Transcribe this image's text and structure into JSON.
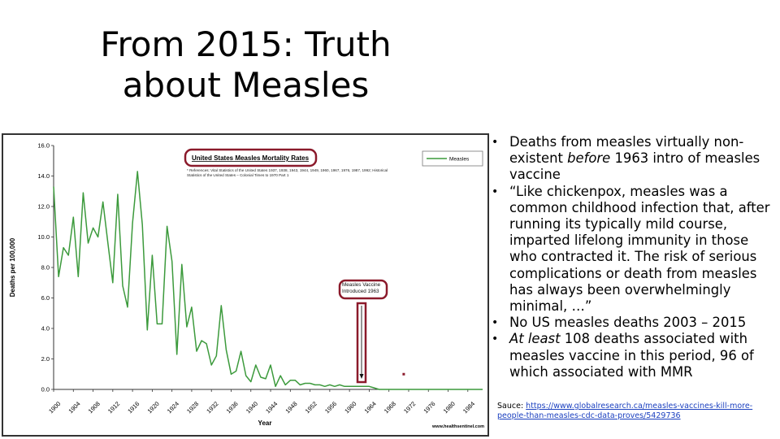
{
  "slide": {
    "title_line1": "From 2015: Truth",
    "title_line2": "about Measles"
  },
  "bullets": [
    {
      "parts": [
        "Deaths from measles virtually non-existent ",
        "before",
        " 1963 intro of measles vaccine"
      ]
    },
    {
      "parts": [
        "“Like chickenpox, measles was a common childhood infection that, after running its typically mild course, imparted lifelong immunity in those who contracted it. The risk of serious complications or death from measles has always been overwhelmingly minimal, …”"
      ]
    },
    {
      "parts": [
        "No US measles deaths 2003 – 2015"
      ]
    },
    {
      "parts": [
        "At least",
        " 108 deaths associated with measles vaccine in this period, 96 of which associated with MMR"
      ]
    }
  ],
  "source": {
    "label": "Sauce: ",
    "link_text": "https://www.globalresearch.ca/measles-vaccines-kill-more-people-than-measles-cdc-data-proves/5429736"
  },
  "colors": {
    "line": "#3c9a3c",
    "annotation_border": "#8b1a2b",
    "link": "#1a3fbf"
  },
  "chart_data": {
    "type": "line",
    "title": "United States Measles Mortality Rates",
    "references": "* References: Vital Statistics of the United States 1937, 1938, 1943, 1944, 1949, 1960, 1967, 1976, 1987, 1992; Historical Statistics of the United States – Colonial Times to 1970 Part 1",
    "xlabel": "Year",
    "ylabel": "Deaths per 100,000",
    "xlim": [
      1900,
      1987
    ],
    "ylim": [
      0,
      16
    ],
    "yticks": [
      "0.0",
      "2.0",
      "4.0",
      "6.0",
      "8.0",
      "10.0",
      "12.0",
      "14.0",
      "16.0"
    ],
    "xticks": [
      "1900",
      "1904",
      "1908",
      "1912",
      "1916",
      "1920",
      "1924",
      "1928",
      "1932",
      "1936",
      "1940",
      "1944",
      "1948",
      "1952",
      "1956",
      "1960",
      "1964",
      "1968",
      "1972",
      "1976",
      "1980",
      "1984"
    ],
    "legend": "Measles",
    "grid": false,
    "watermark": "www.healthsentinel.com",
    "annotation": "Measles Vaccine Introduced 1963",
    "annotation_year": 1963,
    "series": [
      {
        "name": "Measles",
        "x": [
          1900,
          1901,
          1902,
          1903,
          1904,
          1905,
          1906,
          1907,
          1908,
          1909,
          1910,
          1911,
          1912,
          1913,
          1914,
          1915,
          1916,
          1917,
          1918,
          1919,
          1920,
          1921,
          1922,
          1923,
          1924,
          1925,
          1926,
          1927,
          1928,
          1929,
          1930,
          1931,
          1932,
          1933,
          1934,
          1935,
          1936,
          1937,
          1938,
          1939,
          1940,
          1941,
          1942,
          1943,
          1944,
          1945,
          1946,
          1947,
          1948,
          1949,
          1950,
          1951,
          1952,
          1953,
          1954,
          1955,
          1956,
          1957,
          1958,
          1959,
          1960,
          1961,
          1962,
          1963,
          1964,
          1965,
          1966,
          1967,
          1968,
          1969,
          1970,
          1971,
          1972,
          1973,
          1974,
          1975,
          1976,
          1977,
          1978,
          1979,
          1980,
          1981,
          1982,
          1983,
          1984,
          1985,
          1986,
          1987
        ],
        "values": [
          13.3,
          7.4,
          9.3,
          8.8,
          11.3,
          7.4,
          12.9,
          9.6,
          10.6,
          10.0,
          12.3,
          9.6,
          7.0,
          12.8,
          6.8,
          5.4,
          10.9,
          14.3,
          10.8,
          3.9,
          8.8,
          4.3,
          4.3,
          10.7,
          8.4,
          2.3,
          8.2,
          4.1,
          5.4,
          2.5,
          3.2,
          3.0,
          1.6,
          2.2,
          5.5,
          2.6,
          1.0,
          1.2,
          2.5,
          0.9,
          0.5,
          1.6,
          0.8,
          0.7,
          1.6,
          0.2,
          0.9,
          0.3,
          0.6,
          0.6,
          0.3,
          0.4,
          0.4,
          0.3,
          0.3,
          0.2,
          0.3,
          0.2,
          0.3,
          0.2,
          0.2,
          0.2,
          0.2,
          0.2,
          0.2,
          0.1,
          0.0,
          0.0,
          0.0,
          0.0,
          0.0,
          0.0,
          0.0,
          0.0,
          0.0,
          0.0,
          0.0,
          0.0,
          0.0,
          0.0,
          0.0,
          0.0,
          0.0,
          0.0,
          0.0,
          0.0,
          0.0,
          0.0
        ]
      }
    ],
    "outlier_points": [
      {
        "x": 1971,
        "y": 1.0
      }
    ]
  }
}
